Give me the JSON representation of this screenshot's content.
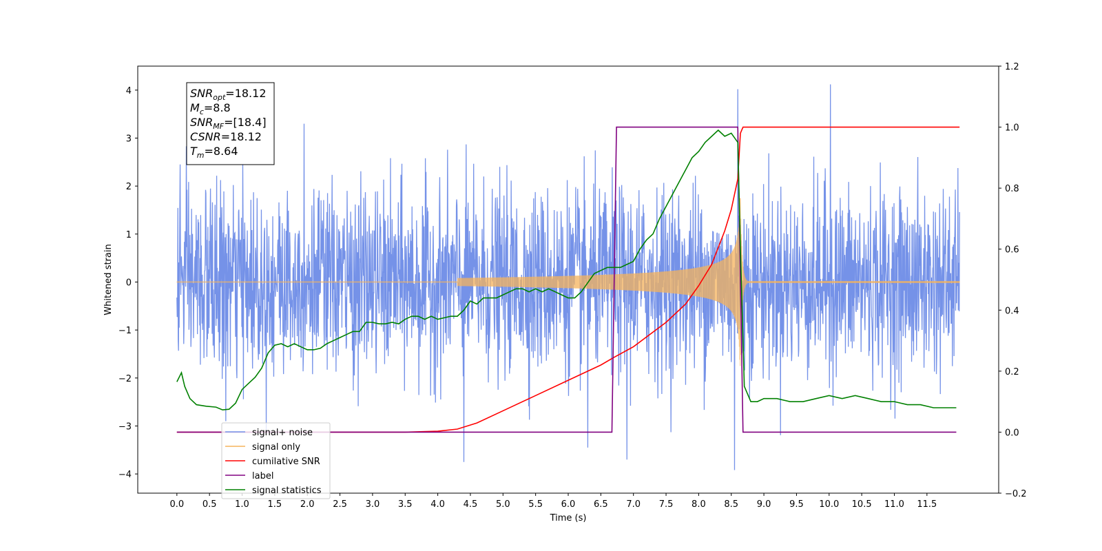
{
  "chart_data": {
    "type": "line",
    "xlabel": "Time (s)",
    "ylabel": "Whitened strain",
    "xlim": [
      -0.6,
      12.6
    ],
    "ylim": [
      -4.4,
      4.5
    ],
    "y2lim": [
      -0.2,
      1.2
    ],
    "x_ticks": [
      0.0,
      0.5,
      1.0,
      1.5,
      2.0,
      2.5,
      3.0,
      3.5,
      4.0,
      4.5,
      5.0,
      5.5,
      6.0,
      6.5,
      7.0,
      7.5,
      8.0,
      8.5,
      9.0,
      9.5,
      10.0,
      10.5,
      11.0,
      11.5
    ],
    "x_tick_labels": [
      "0.0",
      "0.5",
      "1.0",
      "1.5",
      "2.0",
      "2.5",
      "3.0",
      "3.5",
      "4.0",
      "4.5",
      "5.0",
      "5.5",
      "6.0",
      "6.5",
      "7.0",
      "7.5",
      "8.0",
      "8.5",
      "9.0",
      "9.5",
      "10.0",
      "10.5",
      "11.0",
      "11.5"
    ],
    "y_ticks": [
      -4,
      -3,
      -2,
      -1,
      0,
      1,
      2,
      3,
      4
    ],
    "y_tick_labels": [
      "−4",
      "−3",
      "−2",
      "−1",
      "0",
      "1",
      "2",
      "3",
      "4"
    ],
    "y2_ticks": [
      -0.2,
      0.0,
      0.2,
      0.4,
      0.6,
      0.8,
      1.0,
      1.2
    ],
    "y2_tick_labels": [
      "−0.2",
      "0.0",
      "0.2",
      "0.4",
      "0.6",
      "0.8",
      "1.0",
      "1.2"
    ],
    "noise": {
      "time_range": [
        0.0,
        12.0
      ],
      "samples": 2400,
      "typical_range": [
        -2.5,
        2.5
      ],
      "spikes": [
        [
          0.05,
          2.45
        ],
        [
          0.75,
          -2.9
        ],
        [
          1.95,
          3.3
        ],
        [
          4.4,
          -3.75
        ],
        [
          6.3,
          -3.45
        ],
        [
          6.9,
          -3.7
        ],
        [
          8.6,
          4.02
        ],
        [
          8.55,
          -3.92
        ],
        [
          10.02,
          4.12
        ]
      ]
    },
    "series": [
      {
        "name": "signal+ noise",
        "axis": "left",
        "color": "#7592e8"
      },
      {
        "name": "signal only",
        "axis": "left",
        "color": "#f5b35c",
        "chirp_start": 4.3,
        "merger_time": 8.64,
        "peak_amplitude": 1.75
      },
      {
        "name": "cumilative SNR",
        "axis": "right",
        "color": "#ff0000",
        "x": [
          0.0,
          3.0,
          3.5,
          4.0,
          4.3,
          4.6,
          5.0,
          5.5,
          6.0,
          6.5,
          6.7,
          7.0,
          7.5,
          7.8,
          8.0,
          8.2,
          8.4,
          8.5,
          8.6,
          8.64,
          8.68,
          12.0
        ],
        "y": [
          0.0,
          0.0,
          0.0,
          0.003,
          0.01,
          0.03,
          0.07,
          0.12,
          0.17,
          0.22,
          0.245,
          0.28,
          0.36,
          0.42,
          0.48,
          0.55,
          0.66,
          0.73,
          0.83,
          0.98,
          1.0,
          1.0
        ]
      },
      {
        "name": "label",
        "axis": "right",
        "color": "#800080",
        "x": [
          0.0,
          6.67,
          6.74,
          8.6,
          8.68,
          11.95
        ],
        "y": [
          0.0,
          0.0,
          1.0,
          1.0,
          0.0,
          0.0
        ]
      },
      {
        "name": "signal statistics",
        "axis": "right",
        "color": "#008000",
        "x": [
          0.0,
          0.07,
          0.12,
          0.2,
          0.3,
          0.45,
          0.6,
          0.7,
          0.8,
          0.9,
          1.0,
          1.1,
          1.2,
          1.3,
          1.4,
          1.5,
          1.6,
          1.7,
          1.8,
          1.9,
          2.0,
          2.1,
          2.2,
          2.3,
          2.4,
          2.5,
          2.6,
          2.7,
          2.8,
          2.9,
          3.0,
          3.1,
          3.2,
          3.3,
          3.4,
          3.5,
          3.6,
          3.7,
          3.8,
          3.9,
          4.0,
          4.1,
          4.2,
          4.3,
          4.4,
          4.5,
          4.6,
          4.7,
          4.8,
          4.9,
          5.0,
          5.1,
          5.2,
          5.3,
          5.4,
          5.5,
          5.6,
          5.7,
          5.8,
          5.9,
          6.0,
          6.1,
          6.2,
          6.3,
          6.4,
          6.5,
          6.6,
          6.7,
          6.8,
          6.9,
          7.0,
          7.1,
          7.2,
          7.3,
          7.4,
          7.5,
          7.6,
          7.7,
          7.8,
          7.9,
          8.0,
          8.1,
          8.2,
          8.3,
          8.4,
          8.5,
          8.6,
          8.64,
          8.7,
          8.8,
          8.9,
          9.0,
          9.2,
          9.4,
          9.6,
          9.8,
          10.0,
          10.2,
          10.4,
          10.6,
          10.8,
          11.0,
          11.2,
          11.4,
          11.6,
          11.8,
          11.95
        ],
        "y": [
          0.165,
          0.195,
          0.15,
          0.11,
          0.09,
          0.085,
          0.082,
          0.073,
          0.075,
          0.095,
          0.14,
          0.16,
          0.18,
          0.21,
          0.26,
          0.285,
          0.29,
          0.28,
          0.29,
          0.28,
          0.27,
          0.27,
          0.275,
          0.29,
          0.3,
          0.31,
          0.32,
          0.33,
          0.33,
          0.36,
          0.36,
          0.355,
          0.355,
          0.36,
          0.355,
          0.37,
          0.38,
          0.38,
          0.37,
          0.38,
          0.37,
          0.375,
          0.38,
          0.38,
          0.4,
          0.43,
          0.42,
          0.44,
          0.44,
          0.44,
          0.45,
          0.46,
          0.47,
          0.47,
          0.46,
          0.47,
          0.46,
          0.47,
          0.46,
          0.45,
          0.44,
          0.44,
          0.46,
          0.49,
          0.52,
          0.53,
          0.54,
          0.54,
          0.54,
          0.55,
          0.56,
          0.6,
          0.63,
          0.65,
          0.7,
          0.74,
          0.78,
          0.82,
          0.86,
          0.9,
          0.92,
          0.95,
          0.97,
          0.99,
          0.97,
          0.98,
          0.95,
          0.6,
          0.15,
          0.1,
          0.1,
          0.11,
          0.11,
          0.1,
          0.1,
          0.11,
          0.12,
          0.11,
          0.12,
          0.11,
          0.1,
          0.1,
          0.09,
          0.09,
          0.08,
          0.08,
          0.08
        ]
      }
    ],
    "legend": {
      "location": "lower-left",
      "entries": [
        "signal+ noise",
        "signal only",
        "cumilative SNR",
        "label",
        "signal statistics"
      ]
    },
    "info_box": {
      "location": "top-left",
      "lines": [
        {
          "base": "SNR",
          "sub": "opt",
          "value": "=18.12"
        },
        {
          "base": "M",
          "sub": "c",
          "value": "=8.8"
        },
        {
          "base": "SNR",
          "sub": "MF",
          "value": "=[18.4]"
        },
        {
          "base": "CSNR",
          "sub": "",
          "value": "=18.12"
        },
        {
          "base": "T",
          "sub": "m",
          "value": "=8.64"
        }
      ]
    },
    "grid": false
  }
}
